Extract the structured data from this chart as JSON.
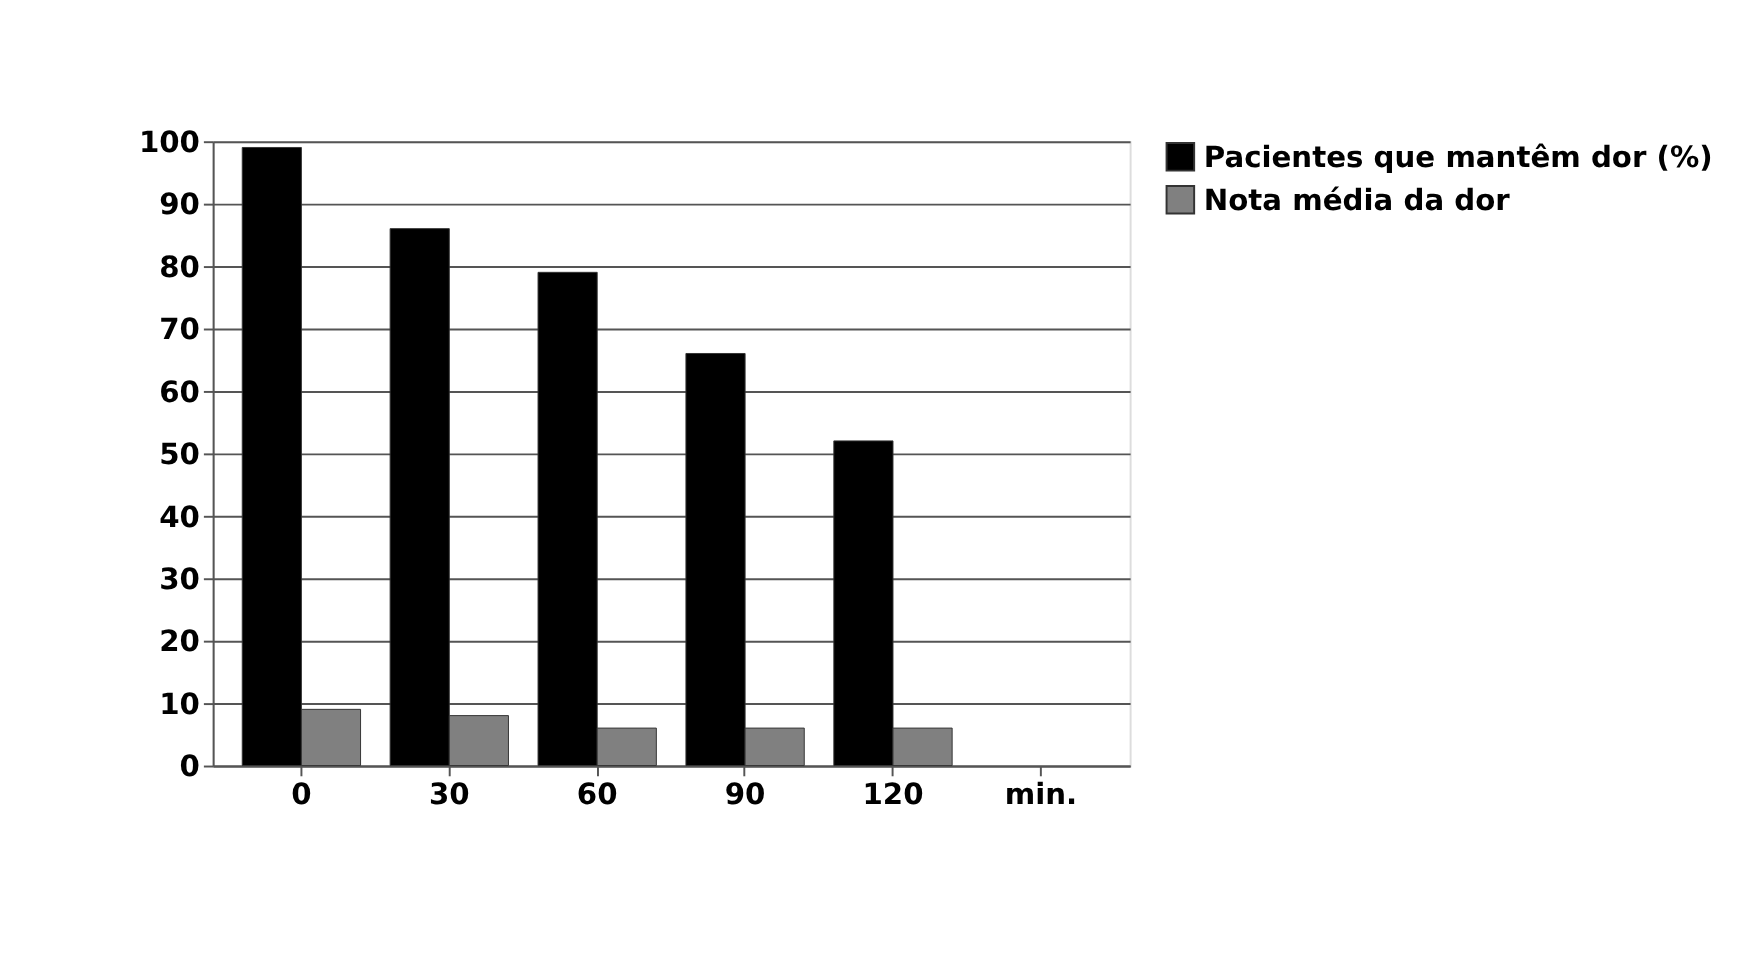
{
  "chart_data": {
    "type": "bar",
    "categories": [
      "0",
      "30",
      "60",
      "90",
      "120",
      "min."
    ],
    "series": [
      {
        "name": "Pacientes que mantêm dor (%)",
        "color": "#000000",
        "values": [
          99,
          86,
          79,
          66,
          52,
          null
        ]
      },
      {
        "name": "Nota média da dor",
        "color": "#808080",
        "values": [
          9,
          8,
          6,
          6,
          6,
          null
        ]
      }
    ],
    "ylim": [
      0,
      100
    ],
    "yticks": [
      0,
      10,
      20,
      30,
      40,
      50,
      60,
      70,
      80,
      90,
      100
    ],
    "grid": "y",
    "legend": "right"
  }
}
